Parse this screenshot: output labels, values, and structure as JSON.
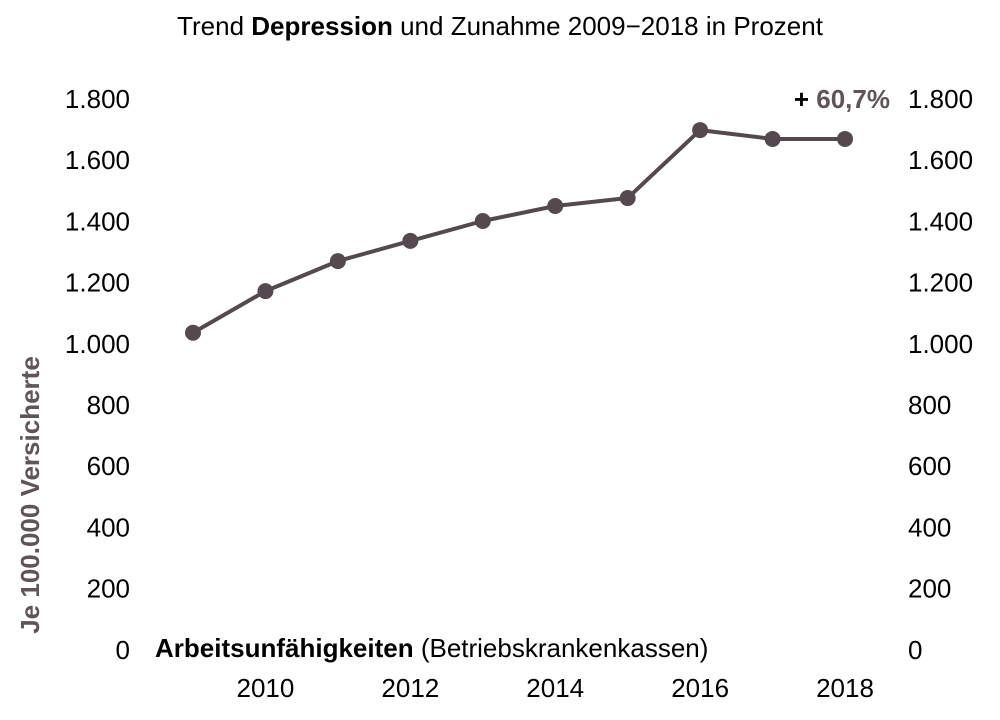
{
  "chart_data": {
    "type": "line",
    "title": [
      "Trend ",
      "Depression",
      " und Zunahme 2009−2018 in Prozent"
    ],
    "y_label": "Je 100.000 Versicherte",
    "annotation_change": [
      "+ ",
      "60,7%"
    ],
    "annotation_source": [
      "Arbeitsunfähigkeiten",
      " (Betriebskrankenkassen)"
    ],
    "x": [
      2009,
      2010,
      2011,
      2012,
      2013,
      2014,
      2015,
      2016,
      2017,
      2018
    ],
    "series": [
      {
        "color": "#54494f",
        "values": [
          1043,
          1179,
          1277,
          1343,
          1408,
          1457,
          1483,
          1705,
          1676,
          1676
        ]
      }
    ],
    "xlim": [
      2009,
      2018
    ],
    "xticks": [
      2010,
      2012,
      2014,
      2016,
      2018
    ],
    "ylim": [
      0,
      1800
    ],
    "yticks": [
      0,
      200,
      400,
      600,
      800,
      {
        "value": 1000,
        "label": "1.000"
      },
      {
        "value": 1200,
        "label": "1.200"
      },
      {
        "value": 1400,
        "label": "1.400"
      },
      {
        "value": 1600,
        "label": "1.600"
      },
      {
        "value": 1800,
        "label": "1.800"
      }
    ],
    "y2lim": [
      0,
      1800
    ],
    "y2ticks": [
      0,
      200,
      400,
      600,
      800,
      {
        "value": 1000,
        "label": "1.000"
      },
      {
        "value": 1200,
        "label": "1.200"
      },
      {
        "value": 1400,
        "label": "1.400"
      },
      {
        "value": 1600,
        "label": "1.600"
      },
      {
        "value": 1800,
        "label": "1.800"
      }
    ],
    "grid": false
  }
}
